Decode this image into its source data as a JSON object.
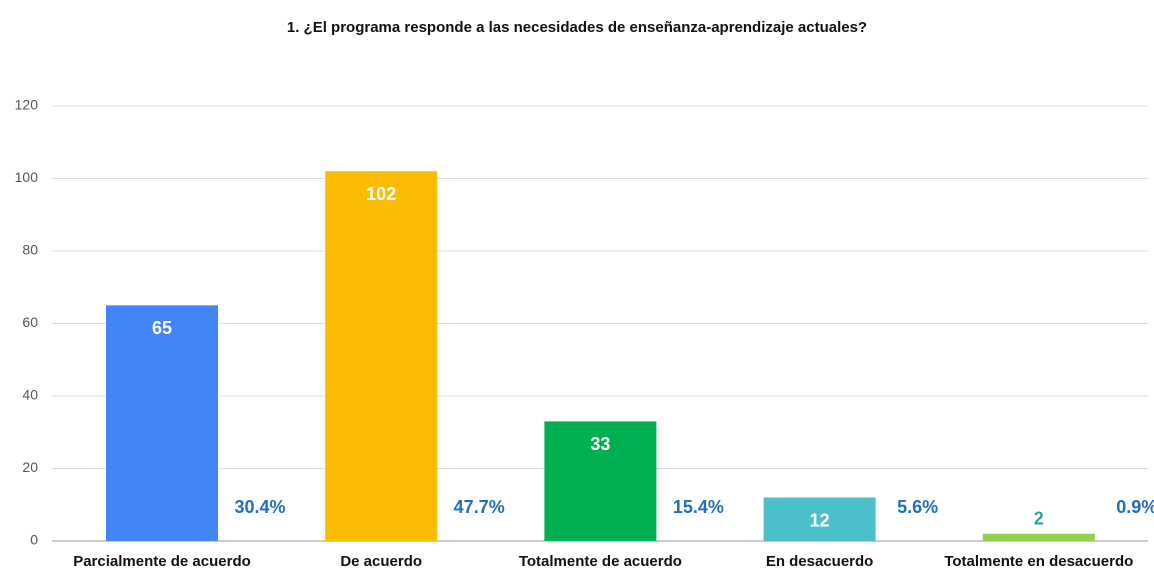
{
  "chart_data": {
    "type": "bar",
    "title": "1. ¿El programa responde a las necesidades de enseñanza-aprendizaje actuales?",
    "categories": [
      "Parcialmente de acuerdo",
      "De acuerdo",
      "Totalmente de acuerdo",
      "En desacuerdo",
      "Totalmente en desacuerdo"
    ],
    "values": [
      65,
      102,
      33,
      12,
      2
    ],
    "colors": [
      "#4285f4",
      "#fbbc04",
      "#00b050",
      "#4bbfca",
      "#92d050"
    ],
    "percent_labels": [
      "30.4%",
      "47.7%",
      "15.4%",
      "5.6%",
      "0.9%"
    ],
    "ylim": [
      0,
      120
    ],
    "yticks": [
      0,
      20,
      40,
      60,
      80,
      100,
      120
    ],
    "grid": true
  }
}
